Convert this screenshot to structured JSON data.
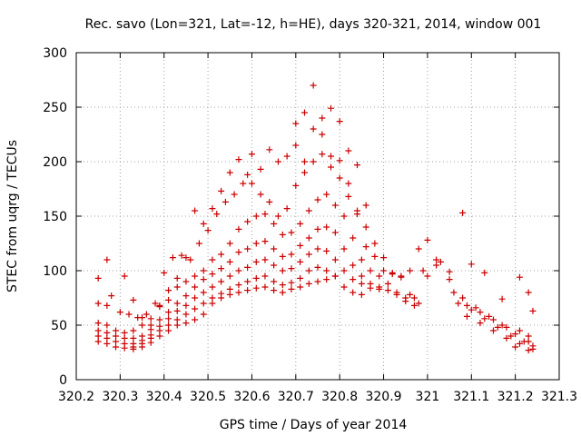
{
  "chart_data": {
    "type": "scatter",
    "title": "Rec. savo (Lon=321, Lat=-12, h=HE), days 320-321, 2014, window 001",
    "xlabel": "GPS time / Days of year 2014",
    "ylabel": "STEC from uqrg / TECUs",
    "xlim": [
      320.2,
      321.3
    ],
    "ylim": [
      0,
      300
    ],
    "xticks": [
      {
        "value": 320.2,
        "label": "320.2"
      },
      {
        "value": 320.3,
        "label": "320.3"
      },
      {
        "value": 320.4,
        "label": "320.4"
      },
      {
        "value": 320.5,
        "label": "320.5"
      },
      {
        "value": 320.6,
        "label": "320.6"
      },
      {
        "value": 320.7,
        "label": "320.7"
      },
      {
        "value": 320.8,
        "label": "320.8"
      },
      {
        "value": 320.9,
        "label": "320.9"
      },
      {
        "value": 321.0,
        "label": "321"
      },
      {
        "value": 321.1,
        "label": "321.1"
      },
      {
        "value": 321.2,
        "label": "321.2"
      },
      {
        "value": 321.3,
        "label": "321.3"
      }
    ],
    "yticks": [
      {
        "value": 0,
        "label": "0"
      },
      {
        "value": 50,
        "label": "50"
      },
      {
        "value": 100,
        "label": "100"
      },
      {
        "value": 150,
        "label": "150"
      },
      {
        "value": 200,
        "label": "200"
      },
      {
        "value": 250,
        "label": "250"
      },
      {
        "value": 300,
        "label": "300"
      }
    ],
    "grid": true,
    "marker": "+",
    "color": "#cc0000",
    "series": [
      {
        "points": [
          [
            320.25,
            93
          ],
          [
            320.27,
            110
          ],
          [
            320.28,
            77
          ],
          [
            320.31,
            95
          ],
          [
            320.33,
            73
          ],
          [
            320.35,
            57
          ],
          [
            320.37,
            50
          ],
          [
            320.39,
            68
          ],
          [
            320.41,
            82
          ],
          [
            320.43,
            93
          ],
          [
            320.45,
            112
          ],
          [
            320.47,
            155
          ],
          [
            320.49,
            143
          ],
          [
            320.51,
            157
          ],
          [
            320.53,
            173
          ],
          [
            320.55,
            190
          ],
          [
            320.57,
            202
          ],
          [
            320.59,
            188
          ],
          [
            320.6,
            207
          ],
          [
            320.62,
            193
          ],
          [
            320.64,
            211
          ],
          [
            320.66,
            200
          ],
          [
            320.68,
            205
          ],
          [
            320.7,
            215
          ],
          [
            320.72,
            200
          ],
          [
            320.74,
            230
          ],
          [
            320.76,
            240
          ],
          [
            320.78,
            249
          ],
          [
            320.8,
            237
          ],
          [
            320.82,
            210
          ],
          [
            320.84,
            197
          ],
          [
            320.86,
            160
          ],
          [
            320.88,
            125
          ],
          [
            320.9,
            112
          ],
          [
            320.92,
            98
          ],
          [
            320.94,
            95
          ],
          [
            320.96,
            100
          ],
          [
            320.98,
            120
          ],
          [
            321.0,
            128
          ],
          [
            321.02,
            110
          ],
          [
            321.05,
            99
          ],
          [
            321.08,
            153
          ],
          [
            321.1,
            106
          ],
          [
            321.13,
            98
          ],
          [
            321.17,
            74
          ],
          [
            321.21,
            94
          ],
          [
            321.23,
            80
          ],
          [
            321.24,
            63
          ]
        ]
      },
      {
        "points": [
          [
            320.25,
            70
          ],
          [
            320.27,
            68
          ],
          [
            320.3,
            62
          ],
          [
            320.32,
            60
          ],
          [
            320.34,
            57
          ],
          [
            320.36,
            60
          ],
          [
            320.38,
            70
          ],
          [
            320.4,
            98
          ],
          [
            320.42,
            112
          ],
          [
            320.44,
            114
          ],
          [
            320.46,
            110
          ],
          [
            320.48,
            125
          ],
          [
            320.5,
            137
          ],
          [
            320.52,
            152
          ],
          [
            320.54,
            163
          ],
          [
            320.56,
            170
          ],
          [
            320.58,
            180
          ],
          [
            320.6,
            180
          ],
          [
            320.62,
            170
          ],
          [
            320.64,
            163
          ],
          [
            320.66,
            150
          ],
          [
            320.68,
            157
          ],
          [
            320.7,
            178
          ],
          [
            320.72,
            190
          ],
          [
            320.74,
            200
          ],
          [
            320.76,
            207
          ],
          [
            320.78,
            205
          ],
          [
            320.8,
            201
          ],
          [
            320.82,
            180
          ],
          [
            320.84,
            155
          ],
          [
            320.86,
            122
          ],
          [
            320.88,
            113
          ],
          [
            320.9,
            100
          ],
          [
            320.92,
            97
          ],
          [
            320.94,
            94
          ],
          [
            320.96,
            78
          ],
          [
            320.98,
            70
          ],
          [
            321.0,
            95
          ],
          [
            321.03,
            108
          ],
          [
            321.06,
            80
          ],
          [
            321.09,
            68
          ],
          [
            321.12,
            62
          ],
          [
            321.15,
            55
          ],
          [
            321.18,
            48
          ],
          [
            321.21,
            45
          ],
          [
            321.23,
            40
          ]
        ]
      },
      {
        "points": [
          [
            320.25,
            52
          ],
          [
            320.27,
            50
          ],
          [
            320.29,
            45
          ],
          [
            320.31,
            43
          ],
          [
            320.33,
            45
          ],
          [
            320.35,
            50
          ],
          [
            320.37,
            56
          ],
          [
            320.39,
            67
          ],
          [
            320.41,
            73
          ],
          [
            320.43,
            85
          ],
          [
            320.45,
            90
          ],
          [
            320.47,
            95
          ],
          [
            320.49,
            100
          ],
          [
            320.51,
            110
          ],
          [
            320.53,
            115
          ],
          [
            320.55,
            125
          ],
          [
            320.57,
            138
          ],
          [
            320.59,
            145
          ],
          [
            320.61,
            150
          ],
          [
            320.63,
            152
          ],
          [
            320.65,
            143
          ],
          [
            320.67,
            133
          ],
          [
            320.69,
            135
          ],
          [
            320.71,
            143
          ],
          [
            320.73,
            155
          ],
          [
            320.75,
            165
          ],
          [
            320.77,
            170
          ],
          [
            320.79,
            160
          ],
          [
            320.81,
            150
          ],
          [
            320.83,
            130
          ],
          [
            320.85,
            110
          ],
          [
            320.87,
            100
          ],
          [
            320.89,
            95
          ],
          [
            320.91,
            88
          ],
          [
            320.93,
            80
          ],
          [
            320.95,
            72
          ],
          [
            320.97,
            75
          ],
          [
            320.99,
            100
          ],
          [
            321.02,
            105
          ],
          [
            321.05,
            92
          ],
          [
            321.08,
            75
          ],
          [
            321.11,
            66
          ],
          [
            321.14,
            58
          ],
          [
            321.17,
            50
          ],
          [
            321.2,
            42
          ],
          [
            321.23,
            35
          ]
        ]
      },
      {
        "points": [
          [
            320.25,
            45
          ],
          [
            320.27,
            43
          ],
          [
            320.29,
            40
          ],
          [
            320.31,
            38
          ],
          [
            320.33,
            38
          ],
          [
            320.35,
            40
          ],
          [
            320.37,
            46
          ],
          [
            320.39,
            55
          ],
          [
            320.41,
            62
          ],
          [
            320.43,
            70
          ],
          [
            320.45,
            77
          ],
          [
            320.47,
            85
          ],
          [
            320.49,
            92
          ],
          [
            320.51,
            97
          ],
          [
            320.53,
            102
          ],
          [
            320.55,
            108
          ],
          [
            320.57,
            117
          ],
          [
            320.59,
            120
          ],
          [
            320.61,
            125
          ],
          [
            320.63,
            127
          ],
          [
            320.65,
            120
          ],
          [
            320.67,
            113
          ],
          [
            320.69,
            115
          ],
          [
            320.71,
            123
          ],
          [
            320.73,
            130
          ],
          [
            320.75,
            138
          ],
          [
            320.77,
            140
          ],
          [
            320.79,
            135
          ],
          [
            320.81,
            120
          ],
          [
            320.83,
            105
          ],
          [
            320.85,
            95
          ],
          [
            320.87,
            88
          ],
          [
            320.89,
            85
          ],
          [
            320.91,
            82
          ],
          [
            320.93,
            78
          ],
          [
            320.95,
            75
          ],
          [
            320.97,
            68
          ],
          [
            321.07,
            70
          ],
          [
            321.1,
            64
          ],
          [
            321.13,
            56
          ],
          [
            321.16,
            48
          ],
          [
            321.19,
            40
          ],
          [
            321.22,
            35
          ],
          [
            321.24,
            31
          ]
        ]
      },
      {
        "points": [
          [
            320.25,
            40
          ],
          [
            320.27,
            38
          ],
          [
            320.29,
            35
          ],
          [
            320.31,
            33
          ],
          [
            320.33,
            33
          ],
          [
            320.35,
            36
          ],
          [
            320.37,
            41
          ],
          [
            320.39,
            49
          ],
          [
            320.41,
            56
          ],
          [
            320.43,
            63
          ],
          [
            320.45,
            68
          ],
          [
            320.47,
            75
          ],
          [
            320.49,
            80
          ],
          [
            320.51,
            85
          ],
          [
            320.53,
            90
          ],
          [
            320.55,
            95
          ],
          [
            320.57,
            100
          ],
          [
            320.59,
            103
          ],
          [
            320.61,
            108
          ],
          [
            320.63,
            110
          ],
          [
            320.65,
            105
          ],
          [
            320.67,
            100
          ],
          [
            320.69,
            102
          ],
          [
            320.71,
            108
          ],
          [
            320.73,
            115
          ],
          [
            320.75,
            120
          ],
          [
            320.77,
            118
          ],
          [
            320.79,
            110
          ],
          [
            320.81,
            100
          ],
          [
            320.83,
            92
          ],
          [
            320.85,
            88
          ],
          [
            320.87,
            84
          ],
          [
            320.89,
            83
          ],
          [
            321.09,
            58
          ],
          [
            321.12,
            52
          ],
          [
            321.15,
            45
          ],
          [
            321.18,
            38
          ],
          [
            321.21,
            33
          ],
          [
            321.24,
            28
          ]
        ]
      },
      {
        "points": [
          [
            320.25,
            35
          ],
          [
            320.27,
            33
          ],
          [
            320.29,
            30
          ],
          [
            320.31,
            29
          ],
          [
            320.33,
            30
          ],
          [
            320.35,
            33
          ],
          [
            320.37,
            38
          ],
          [
            320.39,
            45
          ],
          [
            320.41,
            50
          ],
          [
            320.43,
            55
          ],
          [
            320.45,
            60
          ],
          [
            320.47,
            65
          ],
          [
            320.49,
            70
          ],
          [
            320.51,
            75
          ],
          [
            320.53,
            79
          ],
          [
            320.55,
            83
          ],
          [
            320.57,
            87
          ],
          [
            320.59,
            90
          ],
          [
            320.61,
            93
          ],
          [
            320.63,
            95
          ],
          [
            320.65,
            90
          ],
          [
            320.67,
            87
          ],
          [
            320.69,
            89
          ],
          [
            320.71,
            93
          ],
          [
            320.73,
            100
          ],
          [
            320.75,
            103
          ],
          [
            320.77,
            100
          ],
          [
            320.79,
            95
          ],
          [
            320.81,
            85
          ],
          [
            320.83,
            80
          ],
          [
            320.85,
            78
          ],
          [
            321.2,
            30
          ],
          [
            321.23,
            27
          ]
        ]
      },
      {
        "points": [
          [
            320.33,
            28
          ],
          [
            320.35,
            30
          ],
          [
            320.37,
            34
          ],
          [
            320.39,
            40
          ],
          [
            320.41,
            45
          ],
          [
            320.43,
            50
          ],
          [
            320.45,
            52
          ],
          [
            320.47,
            55
          ],
          [
            320.49,
            60
          ],
          [
            320.51,
            70
          ],
          [
            320.53,
            75
          ],
          [
            320.55,
            78
          ],
          [
            320.57,
            80
          ],
          [
            320.59,
            82
          ],
          [
            320.61,
            84
          ],
          [
            320.63,
            85
          ],
          [
            320.65,
            82
          ],
          [
            320.67,
            80
          ],
          [
            320.69,
            83
          ],
          [
            320.71,
            85
          ],
          [
            320.73,
            88
          ],
          [
            320.75,
            90
          ],
          [
            320.77,
            92
          ],
          [
            320.79,
            95
          ]
        ]
      },
      {
        "points": [
          [
            320.7,
            235
          ],
          [
            320.72,
            245
          ],
          [
            320.74,
            270
          ],
          [
            320.76,
            225
          ],
          [
            320.78,
            195
          ],
          [
            320.8,
            185
          ],
          [
            320.82,
            168
          ],
          [
            320.84,
            152
          ],
          [
            320.86,
            140
          ]
        ]
      }
    ]
  }
}
